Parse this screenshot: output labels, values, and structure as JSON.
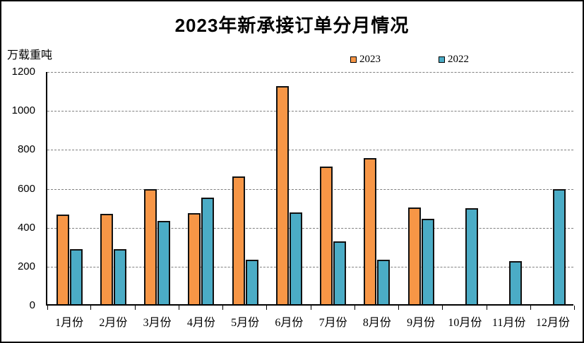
{
  "window": {
    "background": "#ffffff",
    "border_color": "#000000"
  },
  "header": {
    "title": "2023年新承接订单分月情况",
    "y_axis_unit": "万载重吨"
  },
  "legend": {
    "items": [
      {
        "label": "2023",
        "color": "#F79646"
      },
      {
        "label": "2022",
        "color": "#4BACC6"
      }
    ]
  },
  "chart_data": {
    "type": "bar",
    "title": "2023年新承接订单分月情况",
    "ylabel": "万载重吨",
    "categories": [
      "1月份",
      "2月份",
      "3月份",
      "4月份",
      "5月份",
      "6月份",
      "7月份",
      "8月份",
      "9月份",
      "10月份",
      "11月份",
      "12月份"
    ],
    "series": [
      {
        "name": "2023",
        "color": "#F79646",
        "values": [
          460,
          465,
          592,
          468,
          658,
          1120,
          706,
          752,
          498,
          null,
          null,
          null
        ]
      },
      {
        "name": "2022",
        "color": "#4BACC6",
        "values": [
          283,
          283,
          428,
          546,
          228,
          473,
          324,
          229,
          438,
          492,
          220,
          590
        ]
      }
    ],
    "ylim": [
      0,
      1200
    ],
    "yticks": [
      0,
      200,
      400,
      600,
      800,
      1000,
      1200
    ],
    "grid": "horizontal-dashed",
    "legend_position": "top-center",
    "bar_border_color": "#111111"
  }
}
